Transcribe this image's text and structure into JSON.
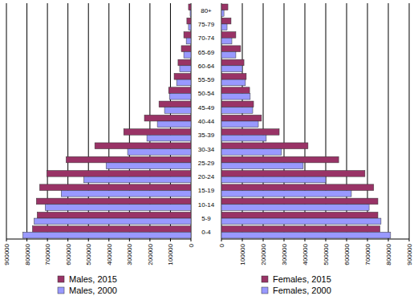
{
  "chart_data": [
    {
      "type": "bar",
      "orientation": "horizontal",
      "grid": true,
      "legend": "bottom",
      "categories": [
        "0-4",
        "5-9",
        "10-14",
        "15-19",
        "20-24",
        "25-29",
        "30-34",
        "35-39",
        "40-44",
        "45-49",
        "50-54",
        "55-59",
        "60-64",
        "65-69",
        "70-74",
        "75-79",
        "80+"
      ],
      "xlim": [
        900000,
        0
      ],
      "xticks": [
        900000,
        800000,
        700000,
        600000,
        500000,
        400000,
        300000,
        200000,
        100000,
        0
      ],
      "series": [
        {
          "name": "Males, 2015",
          "color": "#993366",
          "values": [
            773000,
            750000,
            754000,
            738000,
            703000,
            609000,
            469000,
            328000,
            227000,
            156000,
            109000,
            82000,
            63000,
            47000,
            35000,
            20000,
            12000
          ]
        },
        {
          "name": "Males, 2000",
          "color": "#9999ff",
          "values": [
            820000,
            765000,
            711000,
            633000,
            523000,
            414000,
            309000,
            215000,
            164000,
            129000,
            105000,
            70000,
            55000,
            35000,
            23000,
            12000,
            4000
          ]
        }
      ]
    },
    {
      "type": "bar",
      "orientation": "horizontal",
      "grid": true,
      "legend": "bottom",
      "categories": [
        "0-4",
        "5-9",
        "10-14",
        "15-19",
        "20-24",
        "25-29",
        "30-34",
        "35-39",
        "40-44",
        "45-49",
        "50-54",
        "55-59",
        "60-64",
        "65-69",
        "70-74",
        "75-79",
        "80+"
      ],
      "xlim": [
        0,
        900000
      ],
      "xticks": [
        0,
        100000,
        200000,
        300000,
        400000,
        500000,
        600000,
        700000,
        800000,
        900000
      ],
      "series": [
        {
          "name": "Females, 2015",
          "color": "#993366",
          "values": [
            760000,
            750000,
            750000,
            730000,
            688000,
            562000,
            415000,
            277000,
            192000,
            154000,
            135000,
            119000,
            108000,
            92000,
            69000,
            46000,
            31000
          ]
        },
        {
          "name": "Females, 2000",
          "color": "#9999ff",
          "values": [
            811000,
            765000,
            708000,
            623000,
            500000,
            392000,
            288000,
            215000,
            177000,
            150000,
            138000,
            115000,
            100000,
            69000,
            50000,
            27000,
            12000
          ]
        }
      ]
    }
  ]
}
